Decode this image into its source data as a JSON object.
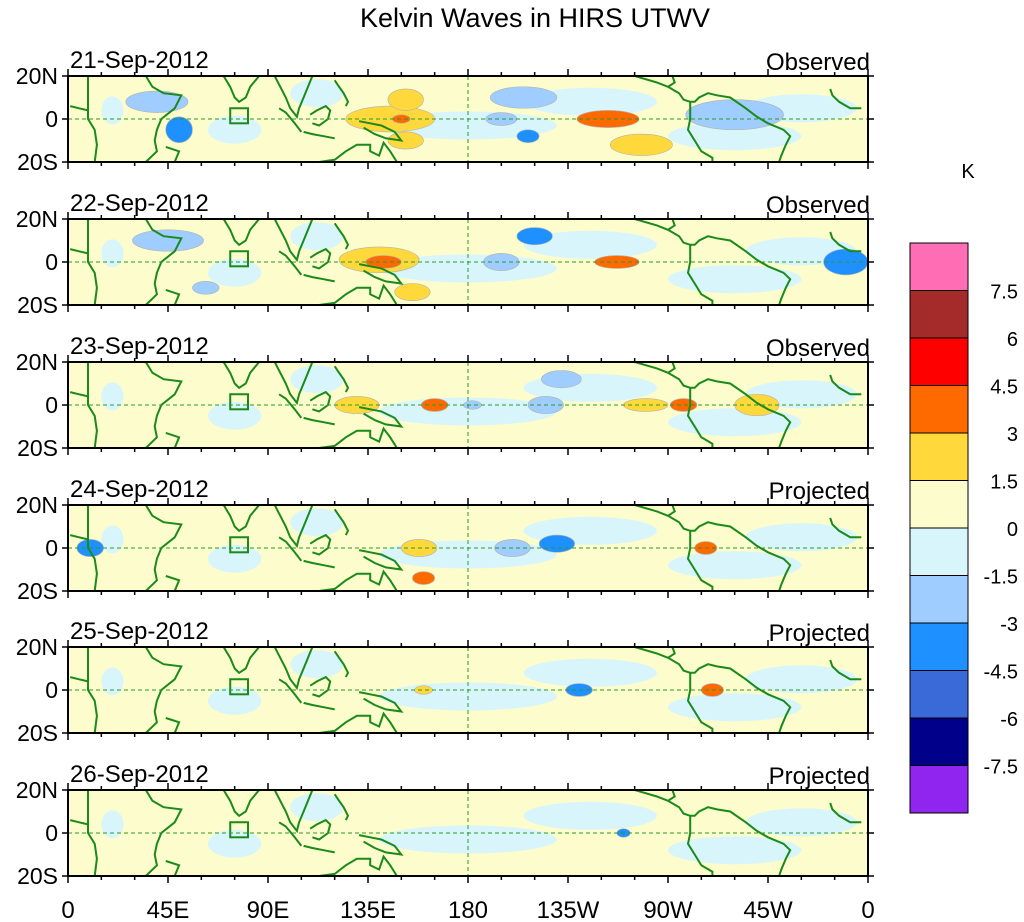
{
  "chart_data": {
    "type": "heatmap",
    "title": "Kelvin Waves in HIRS UTWV",
    "colorbar": {
      "unit": "K",
      "levels": [
        "7.5",
        "6",
        "4.5",
        "3",
        "1.5",
        "0",
        "-1.5",
        "-3",
        "-4.5",
        "-6",
        "-7.5"
      ],
      "colors": [
        "#ff6eb4",
        "#a52a2a",
        "#ff0000",
        "#ff6a00",
        "#ffd93b",
        "#fdfccc",
        "#d8f5fb",
        "#9fcdff",
        "#1e90ff",
        "#3a6ad7",
        "#00008b",
        "#9025f0"
      ]
    },
    "x_ticks": [
      "0",
      "45E",
      "90E",
      "135E",
      "180",
      "135W",
      "90W",
      "45W",
      "0"
    ],
    "x_range": [
      0,
      360
    ],
    "y_ticks": [
      "20N",
      "0",
      "20S"
    ],
    "y_range": [
      -20,
      20
    ],
    "panels": [
      {
        "date": "21-Sep-2012",
        "label": "Observed",
        "anomalies": [
          {
            "lon": 40,
            "lat": 8,
            "rlon": 14,
            "rlat": 5,
            "value": -1.5
          },
          {
            "lon": 50,
            "lat": -5,
            "rlon": 6,
            "rlat": 6,
            "value": -3
          },
          {
            "lon": 145,
            "lat": 0,
            "rlon": 20,
            "rlat": 6,
            "value": 1.5
          },
          {
            "lon": 152,
            "lat": 9,
            "rlon": 8,
            "rlat": 5,
            "value": 1.5
          },
          {
            "lon": 152,
            "lat": -10,
            "rlon": 8,
            "rlat": 4,
            "value": 1.5
          },
          {
            "lon": 150,
            "lat": 0,
            "rlon": 4,
            "rlat": 2,
            "value": 3
          },
          {
            "lon": 195,
            "lat": 0,
            "rlon": 7,
            "rlat": 3,
            "value": -1.5
          },
          {
            "lon": 207,
            "lat": -8,
            "rlon": 5,
            "rlat": 3,
            "value": -3
          },
          {
            "lon": 205,
            "lat": 10,
            "rlon": 15,
            "rlat": 5,
            "value": -1.5
          },
          {
            "lon": 243,
            "lat": 0,
            "rlon": 14,
            "rlat": 4,
            "value": 3
          },
          {
            "lon": 258,
            "lat": -12,
            "rlon": 14,
            "rlat": 5,
            "value": 1.5
          },
          {
            "lon": 300,
            "lat": 2,
            "rlon": 22,
            "rlat": 7,
            "value": -1.5
          }
        ]
      },
      {
        "date": "22-Sep-2012",
        "label": "Observed",
        "anomalies": [
          {
            "lon": 45,
            "lat": 10,
            "rlon": 16,
            "rlat": 5,
            "value": -1.5
          },
          {
            "lon": 62,
            "lat": -12,
            "rlon": 6,
            "rlat": 3,
            "value": -1.5
          },
          {
            "lon": 140,
            "lat": 1,
            "rlon": 18,
            "rlat": 6,
            "value": 1.5
          },
          {
            "lon": 142,
            "lat": 0,
            "rlon": 8,
            "rlat": 3,
            "value": 3
          },
          {
            "lon": 155,
            "lat": -14,
            "rlon": 8,
            "rlat": 4,
            "value": 1.5
          },
          {
            "lon": 195,
            "lat": 0,
            "rlon": 8,
            "rlat": 4,
            "value": -1.5
          },
          {
            "lon": 210,
            "lat": 12,
            "rlon": 8,
            "rlat": 4,
            "value": -3
          },
          {
            "lon": 247,
            "lat": 0,
            "rlon": 10,
            "rlat": 3,
            "value": 3
          },
          {
            "lon": 350,
            "lat": 0,
            "rlon": 10,
            "rlat": 6,
            "value": -3
          }
        ]
      },
      {
        "date": "23-Sep-2012",
        "label": "Observed",
        "anomalies": [
          {
            "lon": 130,
            "lat": 0,
            "rlon": 10,
            "rlat": 4,
            "value": 1.5
          },
          {
            "lon": 165,
            "lat": 0,
            "rlon": 6,
            "rlat": 3,
            "value": 3
          },
          {
            "lon": 182,
            "lat": 0,
            "rlon": 4,
            "rlat": 2,
            "value": -1.5
          },
          {
            "lon": 215,
            "lat": 0,
            "rlon": 8,
            "rlat": 4,
            "value": -1.5
          },
          {
            "lon": 222,
            "lat": 12,
            "rlon": 9,
            "rlat": 4,
            "value": -1.5
          },
          {
            "lon": 260,
            "lat": 0,
            "rlon": 10,
            "rlat": 3,
            "value": 1.5
          },
          {
            "lon": 277,
            "lat": 0,
            "rlon": 6,
            "rlat": 3,
            "value": 3
          },
          {
            "lon": 310,
            "lat": 0,
            "rlon": 10,
            "rlat": 5,
            "value": 1.5
          }
        ]
      },
      {
        "date": "24-Sep-2012",
        "label": "Projected",
        "anomalies": [
          {
            "lon": 10,
            "lat": 0,
            "rlon": 6,
            "rlat": 4,
            "value": -3
          },
          {
            "lon": 158,
            "lat": 0,
            "rlon": 8,
            "rlat": 4,
            "value": 1.5
          },
          {
            "lon": 160,
            "lat": -14,
            "rlon": 5,
            "rlat": 3,
            "value": 3
          },
          {
            "lon": 200,
            "lat": 0,
            "rlon": 8,
            "rlat": 4,
            "value": -1.5
          },
          {
            "lon": 220,
            "lat": 2,
            "rlon": 8,
            "rlat": 4,
            "value": -3
          },
          {
            "lon": 287,
            "lat": 0,
            "rlon": 5,
            "rlat": 3,
            "value": 3
          }
        ]
      },
      {
        "date": "25-Sep-2012",
        "label": "Projected",
        "anomalies": [
          {
            "lon": 160,
            "lat": 0,
            "rlon": 4,
            "rlat": 2,
            "value": 1.5
          },
          {
            "lon": 230,
            "lat": 0,
            "rlon": 6,
            "rlat": 3,
            "value": -3
          },
          {
            "lon": 290,
            "lat": 0,
            "rlon": 5,
            "rlat": 3,
            "value": 3
          }
        ]
      },
      {
        "date": "26-Sep-2012",
        "label": "Projected",
        "anomalies": [
          {
            "lon": 250,
            "lat": 0,
            "rlon": 3,
            "rlat": 2,
            "value": -3
          }
        ]
      }
    ]
  }
}
